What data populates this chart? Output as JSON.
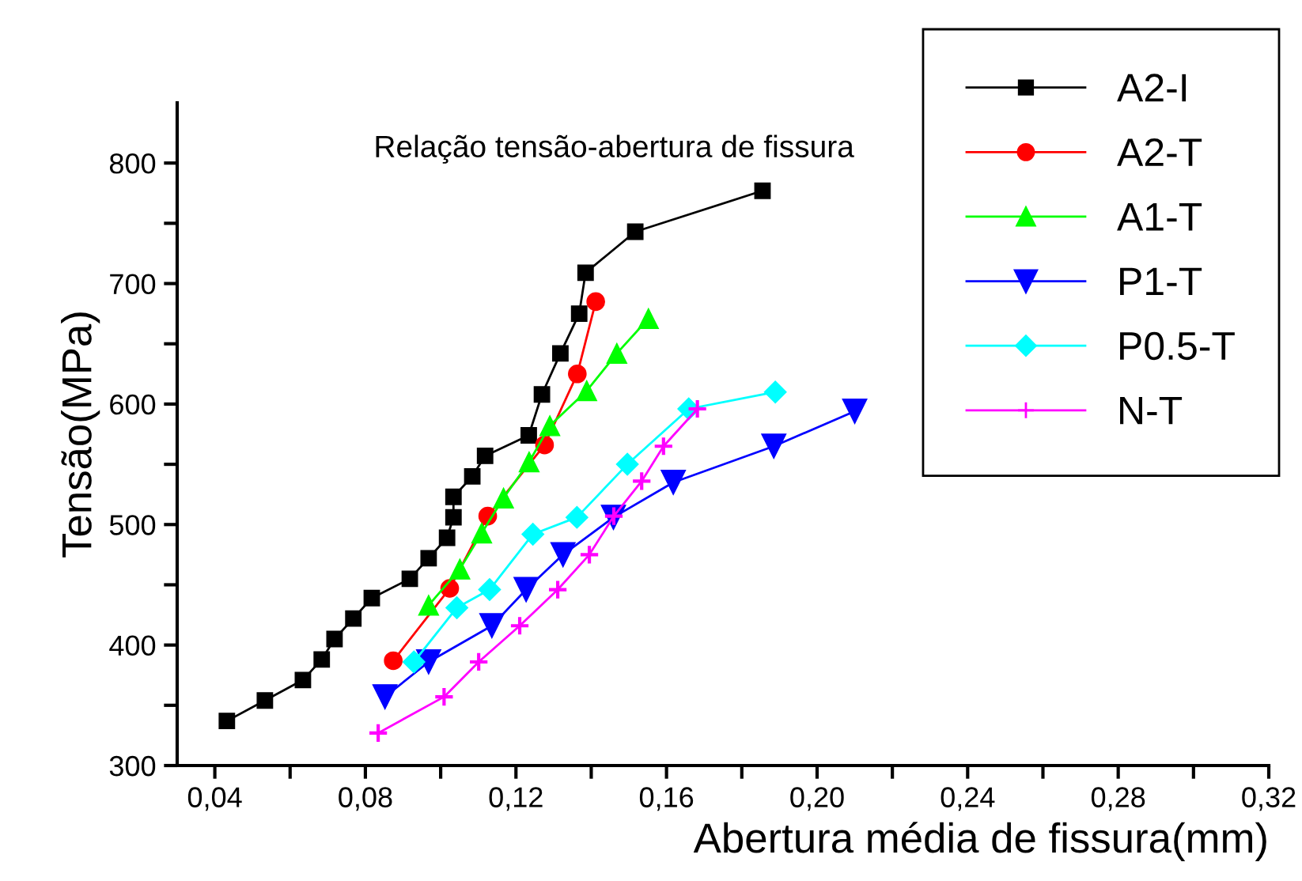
{
  "chart_data": {
    "type": "line",
    "title": "Relação tensão-abertura de fissura",
    "xlabel": "Abertura média de fissura(mm)",
    "ylabel": "Tensão(MPa)",
    "xlim": [
      0.03,
      0.32
    ],
    "ylim": [
      300,
      850
    ],
    "xticks": [
      {
        "value": 0.04,
        "label": "0,04"
      },
      {
        "value": 0.06,
        "label": null
      },
      {
        "value": 0.08,
        "label": "0,08"
      },
      {
        "value": 0.1,
        "label": null
      },
      {
        "value": 0.12,
        "label": "0,12"
      },
      {
        "value": 0.14,
        "label": null
      },
      {
        "value": 0.16,
        "label": "0,16"
      },
      {
        "value": 0.18,
        "label": null
      },
      {
        "value": 0.2,
        "label": "0,20"
      },
      {
        "value": 0.22,
        "label": null
      },
      {
        "value": 0.24,
        "label": "0,24"
      },
      {
        "value": 0.26,
        "label": null
      },
      {
        "value": 0.28,
        "label": "0,28"
      },
      {
        "value": 0.3,
        "label": null
      },
      {
        "value": 0.32,
        "label": "0,32"
      }
    ],
    "yticks": [
      300,
      {
        "value": 350,
        "label": null
      },
      400,
      {
        "value": 450,
        "label": null
      },
      500,
      {
        "value": 550,
        "label": null
      },
      600,
      {
        "value": 650,
        "label": null
      },
      700,
      {
        "value": 750,
        "label": null
      },
      800
    ],
    "grid": false,
    "legend": "top right",
    "line_style": "solid",
    "series": [
      {
        "name": "A2-I",
        "color": "#000000",
        "marker": "square",
        "x": [
          0.0432,
          0.0533,
          0.0634,
          0.0684,
          0.0718,
          0.0768,
          0.0817,
          0.0918,
          0.0968,
          0.1017,
          0.1034,
          0.1034,
          0.1084,
          0.1118,
          0.1234,
          0.1269,
          0.1318,
          0.1368,
          0.1385,
          0.1517,
          0.1855
        ],
        "values": [
          337,
          354,
          371,
          388,
          405,
          422,
          439,
          455,
          472,
          489,
          506,
          523,
          540,
          557,
          574,
          608,
          642,
          675,
          709,
          743,
          777
        ]
      },
      {
        "name": "A2-T",
        "color": "#ff0000",
        "marker": "circle",
        "x": [
          0.0874,
          0.1024,
          0.1125,
          0.1276,
          0.1363,
          0.1412
        ],
        "values": [
          387,
          447,
          507,
          566,
          625,
          685
        ]
      },
      {
        "name": "A1-T",
        "color": "#00ff00",
        "marker": "triangle",
        "x": [
          0.0968,
          0.1051,
          0.1109,
          0.1167,
          0.1235,
          0.129,
          0.1388,
          0.1468,
          0.1552
        ],
        "values": [
          433,
          463,
          493,
          522,
          552,
          582,
          611,
          642,
          671
        ]
      },
      {
        "name": "P1-T",
        "color": "#0000ff",
        "marker": "triangle_down",
        "x": [
          0.0852,
          0.0968,
          0.1136,
          0.1227,
          0.1325,
          0.1459,
          0.1618,
          0.1885,
          0.21
        ],
        "values": [
          357,
          386,
          416,
          446,
          475,
          506,
          535,
          565,
          594
        ]
      },
      {
        "name": "P0.5-T",
        "color": "#00ffff",
        "marker": "diamond",
        "x": [
          0.0929,
          0.1043,
          0.113,
          0.1245,
          0.1362,
          0.1496,
          0.1659,
          0.1889
        ],
        "values": [
          386,
          431,
          446,
          492,
          506,
          550,
          596,
          610
        ]
      },
      {
        "name": "N-T",
        "color": "#ff00ff",
        "marker": "cross",
        "x": [
          0.0834,
          0.1009,
          0.1101,
          0.121,
          0.1311,
          0.1395,
          0.146,
          0.1534,
          0.1592,
          0.1682
        ],
        "values": [
          327,
          357,
          386,
          416,
          446,
          475,
          507,
          536,
          565,
          596
        ]
      }
    ]
  }
}
